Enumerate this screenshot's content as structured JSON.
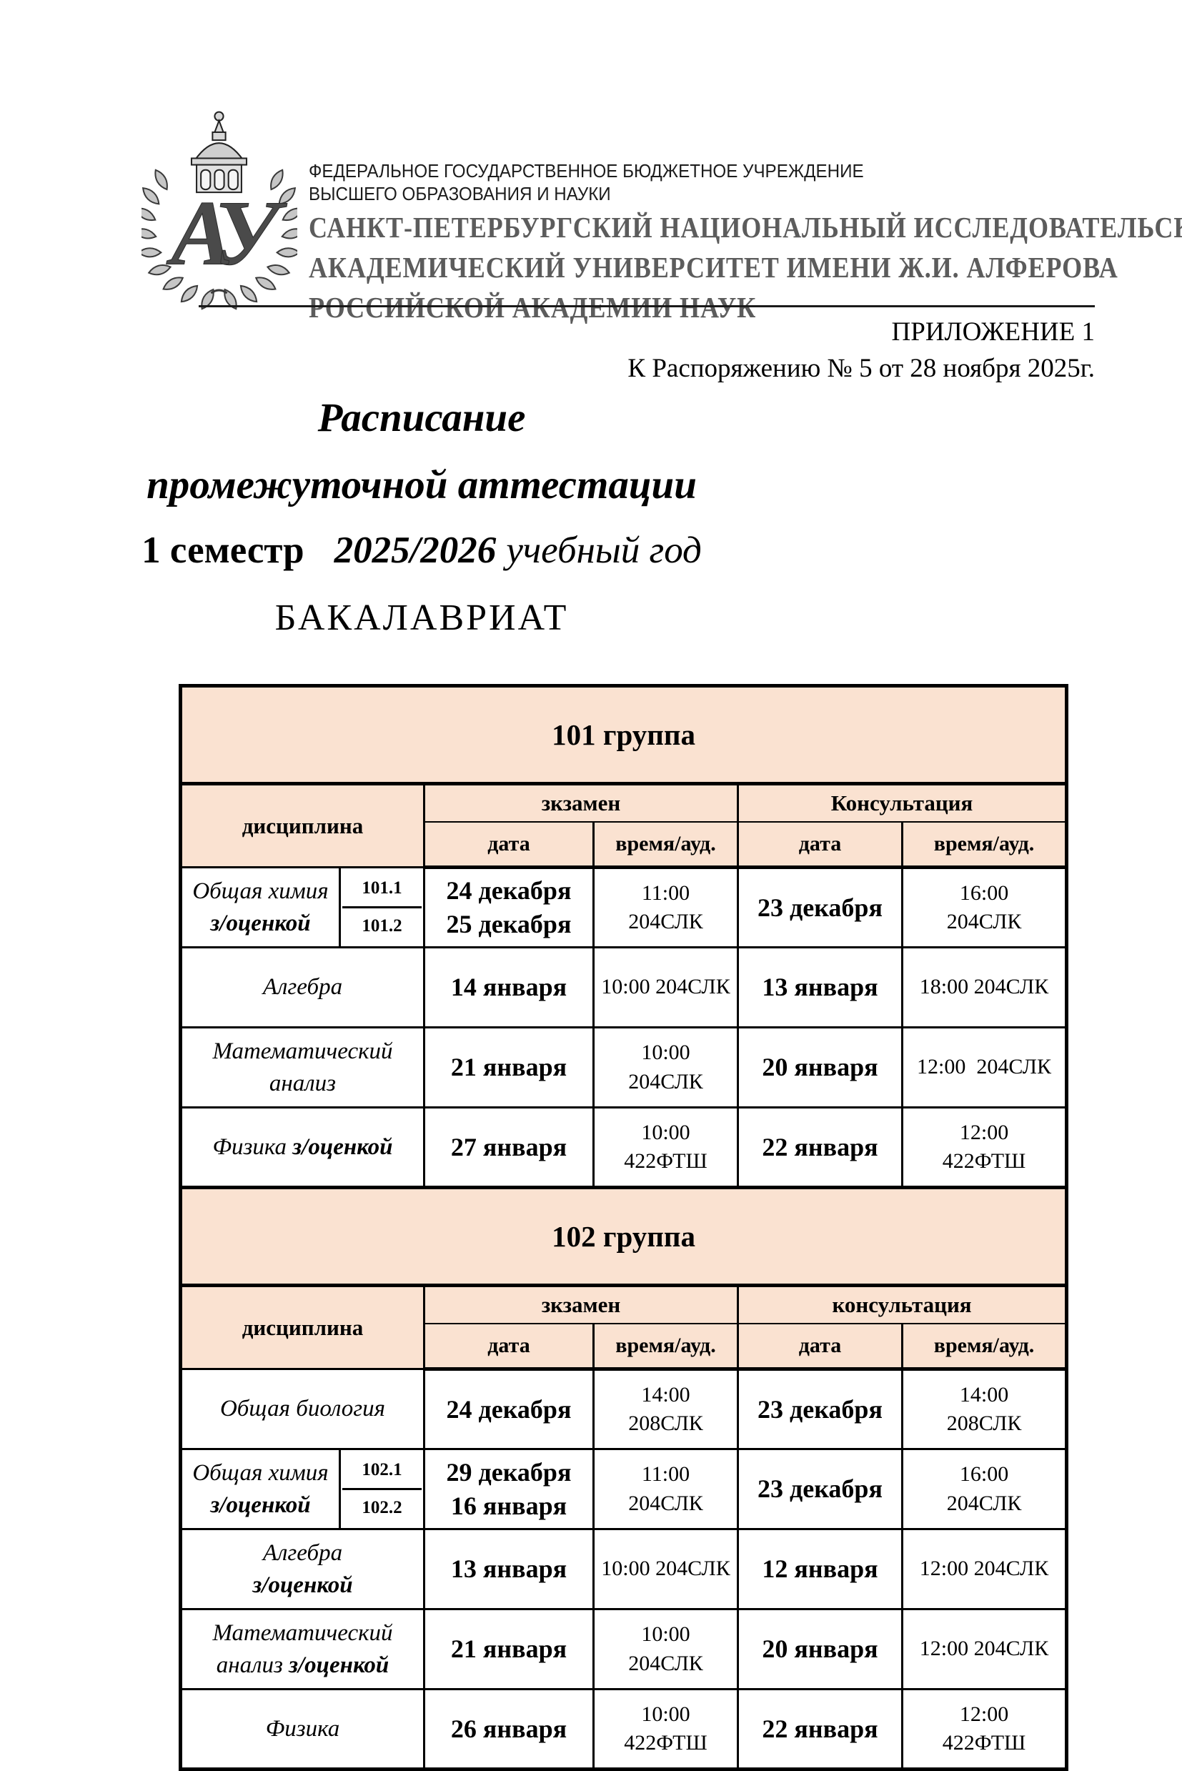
{
  "page": {
    "background": "#ffffff",
    "accent_peach": "#fae2d1",
    "border_color": "#000000",
    "university_name_color": "#5c5c5c"
  },
  "letterhead": {
    "emblem_icon": "university-emblem",
    "org_small_lines": [
      "ФЕДЕРАЛЬНОЕ ГОСУДАРСТВЕННОЕ БЮДЖЕТНОЕ УЧРЕЖДЕНИЕ",
      "ВЫСШЕГО ОБРАЗОВАНИЯ И НАУКИ"
    ],
    "university_lines": [
      "САНКТ-ПЕТЕРБУРГСКИЙ НАЦИОНАЛЬНЫЙ ИССЛЕДОВАТЕЛЬСКИЙ",
      "АКАДЕМИЧЕСКИЙ УНИВЕРСИТЕТ ИМЕНИ Ж.И. АЛФЕРОВА",
      "РОССИЙСКОЙ АКАДЕМИИ НАУК"
    ],
    "appendix": "ПРИЛОЖЕНИЕ 1",
    "order_reference": "К Распоряжению № 5 от 28 ноября 2025г."
  },
  "title": {
    "line1": "Расписание",
    "line2": "промежуточной аттестации",
    "semester": "1 семестр",
    "year": "2025/2026",
    "year_suffix": "учебный год",
    "program": "БАКАЛАВРИАТ"
  },
  "groups": [
    {
      "banner": "101 группа",
      "headers": {
        "discipline": "дисциплина",
        "exam": "зкзамен",
        "consultation": "Консультация",
        "date": "дата",
        "time": "время/ауд."
      },
      "rows": [
        {
          "discipline_lines": [
            [
              {
                "t": "Общая химия",
                "b": false
              }
            ],
            [
              {
                "t": "з/оценкой",
                "b": true
              }
            ]
          ],
          "subgroups": [
            "101.1",
            "101.2"
          ],
          "exam_date": [
            "24 декабря",
            "25 декабря"
          ],
          "exam_time": [
            "11:00",
            "204СЛК"
          ],
          "consult_date": [
            "23 декабря"
          ],
          "consult_time": [
            "16:00",
            "204СЛК"
          ]
        },
        {
          "discipline_lines": [
            [
              {
                "t": "Алгебра",
                "b": false
              }
            ]
          ],
          "subgroups": null,
          "exam_date": [
            "14 января"
          ],
          "exam_time": [
            "10:00 204СЛК"
          ],
          "consult_date": [
            "13 января"
          ],
          "consult_time": [
            "18:00 204СЛК"
          ]
        },
        {
          "discipline_lines": [
            [
              {
                "t": "Математический",
                "b": false
              }
            ],
            [
              {
                "t": "анализ",
                "b": false
              }
            ]
          ],
          "subgroups": null,
          "exam_date": [
            "21 января"
          ],
          "exam_time": [
            "10:00",
            "204СЛК"
          ],
          "consult_date": [
            "20 января"
          ],
          "consult_time": [
            "12:00  204СЛК"
          ]
        },
        {
          "discipline_lines": [
            [
              {
                "t": "Физика ",
                "b": false
              },
              {
                "t": "з/оценкой",
                "b": true
              }
            ]
          ],
          "subgroups": null,
          "exam_date": [
            "27 января"
          ],
          "exam_time": [
            "10:00",
            "422ФТШ"
          ],
          "consult_date": [
            "22 января"
          ],
          "consult_time": [
            "12:00",
            "422ФТШ"
          ]
        }
      ]
    },
    {
      "banner": "102 группа",
      "headers": {
        "discipline": "дисциплина",
        "exam": "зкзамен",
        "consultation": "консультация",
        "date": "дата",
        "time": "время/ауд."
      },
      "rows": [
        {
          "discipline_lines": [
            [
              {
                "t": "Общая биология",
                "b": false
              }
            ]
          ],
          "subgroups": null,
          "exam_date": [
            "24 декабря"
          ],
          "exam_time": [
            "14:00",
            "208СЛК"
          ],
          "consult_date": [
            "23 декабря"
          ],
          "consult_time": [
            "14:00",
            "208СЛК"
          ]
        },
        {
          "discipline_lines": [
            [
              {
                "t": "Общая химия",
                "b": false
              }
            ],
            [
              {
                "t": "з/оценкой",
                "b": true
              }
            ]
          ],
          "subgroups": [
            "102.1",
            "102.2"
          ],
          "exam_date": [
            "29 декабря",
            "16 января"
          ],
          "exam_time": [
            "11:00",
            "204СЛК"
          ],
          "consult_date": [
            "23 декабря"
          ],
          "consult_time": [
            "16:00",
            "204СЛК"
          ]
        },
        {
          "discipline_lines": [
            [
              {
                "t": "Алгебра",
                "b": false
              }
            ],
            [
              {
                "t": "з/оценкой",
                "b": true
              }
            ]
          ],
          "subgroups": null,
          "exam_date": [
            "13 января"
          ],
          "exam_time": [
            "10:00 204СЛК"
          ],
          "consult_date": [
            "12 января"
          ],
          "consult_time": [
            "12:00 204СЛК"
          ]
        },
        {
          "discipline_lines": [
            [
              {
                "t": "Математический",
                "b": false
              }
            ],
            [
              {
                "t": "анализ ",
                "b": false
              },
              {
                "t": "з/оценкой",
                "b": true
              }
            ]
          ],
          "subgroups": null,
          "exam_date": [
            "21 января"
          ],
          "exam_time": [
            "10:00",
            "204СЛК"
          ],
          "consult_date": [
            "20 января"
          ],
          "consult_time": [
            "12:00 204СЛК"
          ]
        },
        {
          "discipline_lines": [
            [
              {
                "t": "Физика",
                "b": false
              }
            ]
          ],
          "subgroups": null,
          "exam_date": [
            "26 января"
          ],
          "exam_time": [
            "10:00",
            "422ФТШ"
          ],
          "consult_date": [
            "22 января"
          ],
          "consult_time": [
            "12:00",
            "422ФТШ"
          ]
        }
      ]
    }
  ]
}
